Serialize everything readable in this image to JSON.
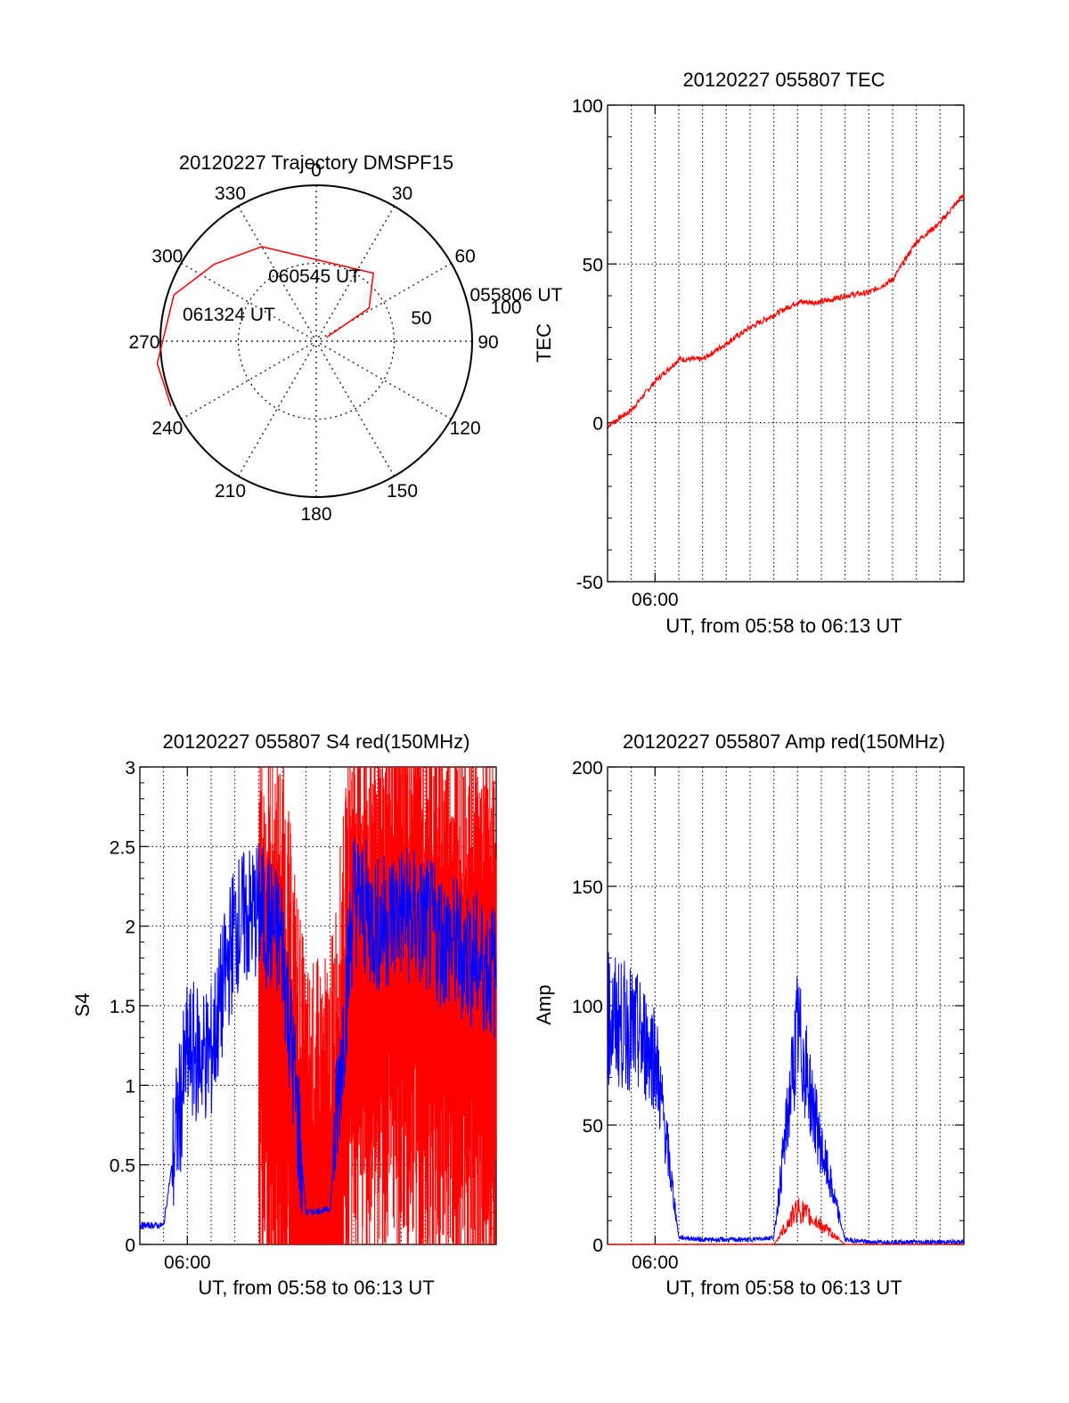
{
  "colors": {
    "background": "#ffffff",
    "axis": "#000000",
    "grid": "#000000",
    "red_series": "#ff0000",
    "blue_series": "#0000ff"
  },
  "chart_data": [
    {
      "type": "polar-trajectory",
      "title": "20120227 Trajectory DMSPF15",
      "azimuth_labels": [
        "0",
        "30",
        "60",
        "90",
        "120",
        "150",
        "180",
        "210",
        "240",
        "270",
        "300",
        "330"
      ],
      "elevation_labels": [
        "50",
        "100"
      ],
      "grid": true,
      "series": [
        {
          "color": "red",
          "points": [
            [
              70,
              7
            ],
            [
              58,
              40
            ],
            [
              40,
              57
            ],
            [
              330,
              70
            ],
            [
              307,
              82
            ],
            [
              288,
              96
            ],
            [
              262,
              103
            ],
            [
              246,
              102
            ]
          ]
        }
      ],
      "annotations": [
        {
          "text": "055806 UT",
          "azimuth": 70,
          "distance": 100
        },
        {
          "text": "060545 UT",
          "azimuth": 340,
          "distance": 40
        },
        {
          "text": "061324 UT",
          "azimuth": 255,
          "distance": 90
        }
      ]
    },
    {
      "type": "line",
      "title": "20120227 055807 TEC",
      "xlabel": "UT, from 05:58 to 06:13 UT",
      "ylabel": "TEC",
      "xlim": [
        "05:58",
        "06:13"
      ],
      "ylim": [
        -50,
        100
      ],
      "yticks": [
        "-50",
        "0",
        "50",
        "100"
      ],
      "xticks": [
        "06:00"
      ],
      "grid": true,
      "series": [
        {
          "color": "red",
          "x": [
            "05:58",
            "05:59",
            "06:00",
            "06:01",
            "06:02",
            "06:03",
            "06:04",
            "06:05",
            "06:06",
            "06:07",
            "06:08",
            "06:09",
            "06:10",
            "06:11",
            "06:12",
            "06:13"
          ],
          "values": [
            -1,
            4,
            13,
            20,
            20,
            25,
            30,
            34,
            38,
            38,
            40,
            41,
            45,
            57,
            63,
            72
          ]
        }
      ]
    },
    {
      "type": "line",
      "title": "20120227 055807 S4 red(150MHz)",
      "xlabel": "UT, from 05:58 to 06:13 UT",
      "ylabel": "S4",
      "xlim": [
        "05:58",
        "06:13"
      ],
      "ylim": [
        0,
        3
      ],
      "yticks": [
        "0",
        "0.5",
        "1",
        "1.5",
        "2",
        "2.5",
        "3"
      ],
      "xticks": [
        "06:00"
      ],
      "grid": true,
      "series": [
        {
          "color": "blue",
          "x": [
            "05:58",
            "05:59",
            "06:00",
            "06:01",
            "06:02",
            "06:03",
            "06:04",
            "06:05",
            "06:06",
            "06:07",
            "06:08",
            "06:09",
            "06:10",
            "06:11",
            "06:12",
            "06:13"
          ],
          "values": [
            0.12,
            0.12,
            1.2,
            1.2,
            2.0,
            2.1,
            1.9,
            0.2,
            0.22,
            2.2,
            2.0,
            2.1,
            2.0,
            1.9,
            1.8,
            1.7
          ]
        },
        {
          "color": "red",
          "x": [
            "05:58",
            "05:59",
            "06:00",
            "06:01",
            "06:02",
            "06:03",
            "06:04",
            "06:05",
            "06:06",
            "06:07",
            "06:08",
            "06:09",
            "06:10",
            "06:11",
            "06:12",
            "06:13"
          ],
          "values": [
            null,
            null,
            null,
            null,
            null,
            1.5,
            1.5,
            0.18,
            0.25,
            1.8,
            1.8,
            1.9,
            1.8,
            1.7,
            1.6,
            1.5
          ]
        }
      ]
    },
    {
      "type": "line",
      "title": "20120227 055807 Amp red(150MHz)",
      "xlabel": "UT, from 05:58 to 06:13 UT",
      "ylabel": "Amp",
      "xlim": [
        "05:58",
        "06:13"
      ],
      "ylim": [
        0,
        200
      ],
      "yticks": [
        "0",
        "50",
        "100",
        "150",
        "200"
      ],
      "xticks": [
        "06:00"
      ],
      "grid": true,
      "series": [
        {
          "color": "blue",
          "x": [
            "05:58",
            "05:59",
            "06:00",
            "06:01",
            "06:02",
            "06:03",
            "06:04",
            "06:05",
            "06:06",
            "06:07",
            "06:08",
            "06:09",
            "06:10",
            "06:11",
            "06:12",
            "06:13"
          ],
          "values": [
            95,
            90,
            80,
            3,
            2,
            2,
            2,
            3,
            90,
            40,
            2,
            1,
            1,
            1,
            1,
            1
          ]
        },
        {
          "color": "red",
          "x": [
            "05:58",
            "05:59",
            "06:00",
            "06:01",
            "06:02",
            "06:03",
            "06:04",
            "06:05",
            "06:06",
            "06:07",
            "06:08",
            "06:09",
            "06:10",
            "06:11",
            "06:12",
            "06:13"
          ],
          "values": [
            0,
            0,
            0,
            0,
            0,
            0,
            0,
            0,
            15,
            8,
            0,
            0,
            0,
            0,
            0,
            0
          ]
        }
      ]
    }
  ]
}
